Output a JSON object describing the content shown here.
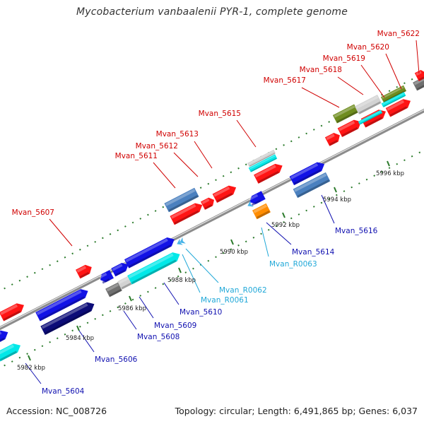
{
  "title": "Mycobacterium vanbaalenii PYR-1, complete genome",
  "accession": "Accession: NC_008726",
  "summary": "Topology: circular; Length: 6,491,865 bp; Genes: 6,037",
  "colors": {
    "red": "#ff1414",
    "blue": "#1212e6",
    "navy": "#0c0c78",
    "steelblue": "#4a80bf",
    "cyan": "#00e8e8",
    "lightgray": "#d2d2d2",
    "darkgray": "#707070",
    "olive": "#6e8c1e",
    "orange": "#ff8c00",
    "skyblue": "#48b4e8",
    "tick_green": "#2a7a2a",
    "label_red": "#d00000",
    "label_blue": "#1010b0",
    "label_cyan": "#20a8d8"
  },
  "ticks": [
    {
      "label": "5982 kbp"
    },
    {
      "label": "5984 kbp"
    },
    {
      "label": "5986 kbp"
    },
    {
      "label": "5988 kbp"
    },
    {
      "label": "5990 kbp"
    },
    {
      "label": "5992 kbp"
    },
    {
      "label": "5994 kbp"
    },
    {
      "label": "5996 kbp"
    }
  ],
  "genes": [
    {
      "label": "Mvan_5604",
      "color": "blue"
    },
    {
      "label": "Mvan_5606",
      "color": "navy"
    },
    {
      "label": "Mvan_5607",
      "color": "red"
    },
    {
      "label": "Mvan_5608",
      "color": "blue"
    },
    {
      "label": "Mvan_5609",
      "color": "darkgray"
    },
    {
      "label": "Mvan_5610",
      "color": "cyan"
    },
    {
      "label": "Mvan_R0061",
      "color": "skyblue"
    },
    {
      "label": "Mvan_R0062",
      "color": "skyblue"
    },
    {
      "label": "Mvan_5611",
      "color": "steelblue"
    },
    {
      "label": "Mvan_5612",
      "color": "red"
    },
    {
      "label": "Mvan_5613",
      "color": "red"
    },
    {
      "label": "Mvan_5614",
      "color": "blue"
    },
    {
      "label": "Mvan_R0063",
      "color": "orange"
    },
    {
      "label": "Mvan_5615",
      "color": "lightgray"
    },
    {
      "label": "Mvan_5616",
      "color": "steelblue"
    },
    {
      "label": "Mvan_5617",
      "color": "red"
    },
    {
      "label": "Mvan_5618",
      "color": "olive"
    },
    {
      "label": "Mvan_5619",
      "color": "lightgray"
    },
    {
      "label": "Mvan_5620",
      "color": "olive"
    },
    {
      "label": "Mvan_5622",
      "color": "darkgray"
    }
  ]
}
